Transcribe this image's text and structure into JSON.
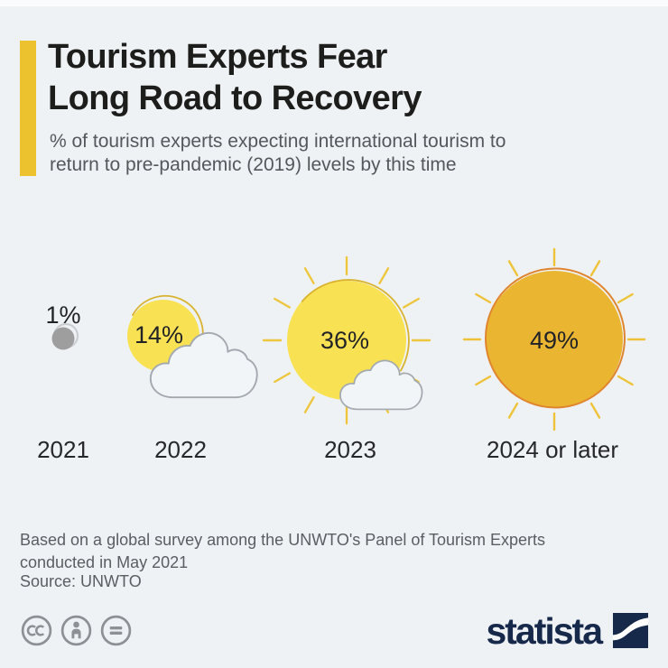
{
  "page": {
    "background": "#eff2f5",
    "accent_color": "#ecc32e"
  },
  "header": {
    "title_lines": [
      "Tourism Experts Fear",
      "Long Road to Recovery"
    ],
    "subtitle_lines": [
      "% of tourism experts expecting international tourism to",
      "return to pre-pandemic (2019) levels by this time"
    ]
  },
  "chart_data": {
    "type": "pictogram",
    "title": "Tourism Experts Fear Long Road to Recovery",
    "subtitle": "% of tourism experts expecting international tourism to return to pre-pandemic (2019) levels by this time",
    "categories": [
      "2021",
      "2022",
      "2023",
      "2024 or later"
    ],
    "values": [
      1,
      14,
      36,
      49
    ],
    "value_labels": [
      "1%",
      "14%",
      "36%",
      "49%"
    ],
    "icon_names": [
      "gray-dot-icon",
      "sun-behind-large-cloud-icon",
      "sun-with-small-cloud-icon",
      "bright-sun-icon"
    ],
    "layout_hints": {
      "icon_size_encodes_value": true,
      "grid": false,
      "legend": false
    },
    "colors": {
      "sun_light": "#f8e153",
      "sun_light_outline": "#d9b32f",
      "sun_deep": "#eab632",
      "sun_deep_outline": "#e0852f",
      "ray": "#edc63e",
      "cloud_fill": "#f2f5f8",
      "cloud_stroke": "#a3a9b0",
      "dot_gray": "#9e9e9e",
      "dot_ring": "#c9ccd0",
      "label": "#222326"
    }
  },
  "footer": {
    "note_lines": [
      "Based on a global survey among the UNWTO's Panel of Tourism Experts",
      "conducted in May 2021"
    ],
    "source": "Source: UNWTO"
  },
  "branding": {
    "logo_text": "statista",
    "logo_color": "#16294a",
    "license_icon_names": [
      "cc-icon",
      "attribution-icon",
      "equals-icon"
    ]
  }
}
